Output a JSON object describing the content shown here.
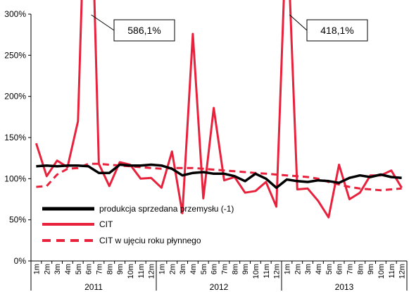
{
  "chart_data": {
    "type": "line",
    "title": "",
    "xlabel": "",
    "ylabel": "",
    "ylim": [
      0,
      300
    ],
    "y_ticks": [
      0,
      50,
      100,
      150,
      200,
      250,
      300
    ],
    "y_tick_labels": [
      "0%",
      "50%",
      "100%",
      "150%",
      "200%",
      "250%",
      "300%"
    ],
    "grid": false,
    "legend_position": "bottom-left",
    "month_labels": [
      "1m",
      "2m",
      "3m",
      "4m",
      "5m",
      "6m",
      "7m",
      "8m",
      "9m",
      "10m",
      "11m",
      "12m",
      "1m",
      "2m",
      "3m",
      "4m",
      "5m",
      "6m",
      "7m",
      "8m",
      "9m",
      "10m",
      "11m",
      "12m",
      "1m",
      "2m",
      "3m",
      "4m",
      "5m",
      "6m",
      "7m",
      "8m",
      "9m",
      "10m",
      "11m",
      "12m"
    ],
    "year_labels": [
      "2011",
      "2012",
      "2013"
    ],
    "series": [
      {
        "name": "produkcja sprzedana przemysłu (-1)",
        "color": "#000000",
        "style": "solid",
        "values": [
          115,
          116,
          115,
          116,
          116,
          115,
          107,
          107,
          117,
          116,
          116,
          117,
          116,
          112,
          104,
          107,
          108,
          106,
          106,
          103,
          97,
          106,
          100,
          89,
          99,
          97,
          96,
          98,
          97,
          95,
          101,
          104,
          102,
          105,
          102,
          101
        ]
      },
      {
        "name": "CIT",
        "color": "#e8213c",
        "style": "solid",
        "values": [
          143,
          103,
          122,
          114,
          170,
          586.1,
          118,
          91,
          120,
          117,
          100,
          101,
          89,
          133,
          58,
          276,
          76,
          186,
          98,
          102,
          83,
          85,
          96,
          66,
          418.1,
          87,
          88,
          73,
          53,
          117,
          75,
          83,
          104,
          104,
          110,
          89
        ]
      },
      {
        "name": "CIT w ujęciu roku płynnego",
        "color": "#e8213c",
        "style": "dashed",
        "values": [
          90,
          91,
          105,
          112,
          113,
          118,
          118,
          117,
          116,
          115,
          114,
          113,
          112,
          113,
          113,
          113,
          112,
          111,
          110,
          109,
          108,
          107,
          106,
          105,
          104,
          103,
          102,
          100,
          96,
          93,
          90,
          88,
          87,
          86,
          87,
          88
        ]
      }
    ],
    "annotations": [
      {
        "label": "586,1%",
        "index": 5,
        "value": 586.1
      },
      {
        "label": "418,1%",
        "index": 24,
        "value": 418.1
      }
    ]
  }
}
